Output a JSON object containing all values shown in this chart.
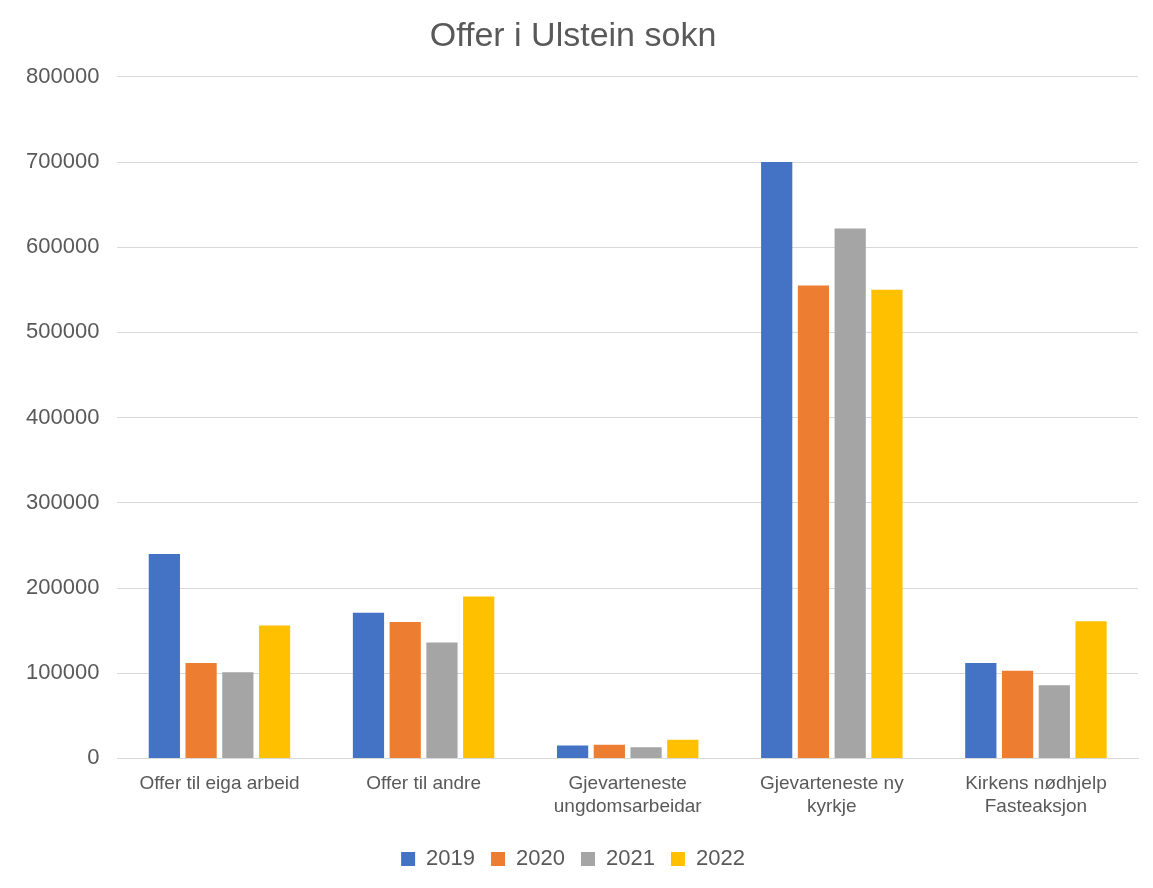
{
  "chart_data": {
    "type": "bar",
    "title": "Offer i Ulstein sokn",
    "categories": [
      "Offer til eiga arbeid",
      "Offer til andre",
      "Gjevarteneste ungdomsarbeidar",
      "Gjevarteneste ny kyrkje",
      "Kirkens nødhjelp Fasteaksjon"
    ],
    "series": [
      {
        "name": "2019",
        "color": "#4472c4",
        "values": [
          240000,
          171000,
          15000,
          700000,
          112000
        ]
      },
      {
        "name": "2020",
        "color": "#ed7d31",
        "values": [
          112000,
          160000,
          16000,
          555000,
          103000
        ]
      },
      {
        "name": "2021",
        "color": "#a5a5a5",
        "values": [
          101000,
          136000,
          13000,
          622000,
          86000
        ]
      },
      {
        "name": "2022",
        "color": "#ffc000",
        "values": [
          156000,
          190000,
          22000,
          550000,
          161000
        ]
      }
    ],
    "ylim": [
      0,
      800000
    ],
    "yticks": [
      0,
      100000,
      200000,
      300000,
      400000,
      500000,
      600000,
      700000,
      800000
    ],
    "grid": "y",
    "legend": "bottom"
  }
}
